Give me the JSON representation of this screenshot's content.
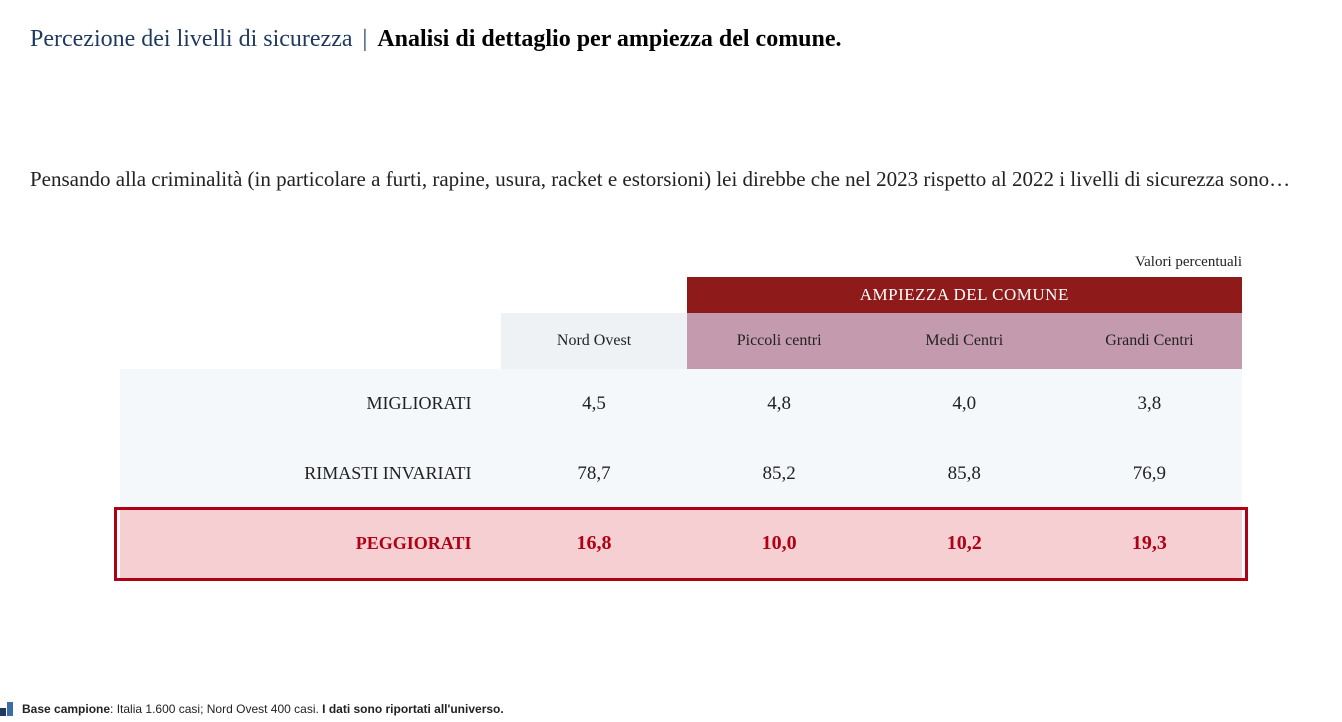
{
  "header": {
    "title_light": "Percezione dei livelli di sicurezza",
    "separator": "|",
    "title_bold": "Analisi di dettaglio per ampiezza del comune."
  },
  "question": "Pensando alla criminalità (in particolare a furti, rapine, usura, racket e estorsioni) lei direbbe che nel 2023 rispetto al 2022 i livelli di sicurezza sono…",
  "units_label": "Valori percentuali",
  "table": {
    "super_header": "AMPIEZZA DEL COMUNE",
    "columns": [
      "Nord Ovest",
      "Piccoli centri",
      "Medi Centri",
      "Grandi Centri"
    ],
    "rows": [
      {
        "label": "MIGLIORATI",
        "values": [
          "4,5",
          "4,8",
          "4,0",
          "3,8"
        ],
        "highlight": false
      },
      {
        "label": "RIMASTI INVARIATI",
        "values": [
          "78,7",
          "85,2",
          "85,8",
          "76,9"
        ],
        "highlight": false
      },
      {
        "label": "PEGGIORATI",
        "values": [
          "16,8",
          "10,0",
          "10,2",
          "19,3"
        ],
        "highlight": true
      }
    ],
    "colors": {
      "banner_bg": "#8e1a1a",
      "banner_text": "#ffffff",
      "subheader_bg": "#c49aaf",
      "subheader_first_bg": "#eef2f4",
      "row_bg": "#f5f8fa",
      "highlight_bg": "#f6cfd3",
      "highlight_text": "#b00015",
      "highlight_border": "#b00015"
    }
  },
  "footer": {
    "label_bold1": "Base campione",
    "text_mid": ": Italia 1.600 casi; Nord Ovest 400 casi. ",
    "label_bold2": "I dati sono riportati all'universo."
  }
}
